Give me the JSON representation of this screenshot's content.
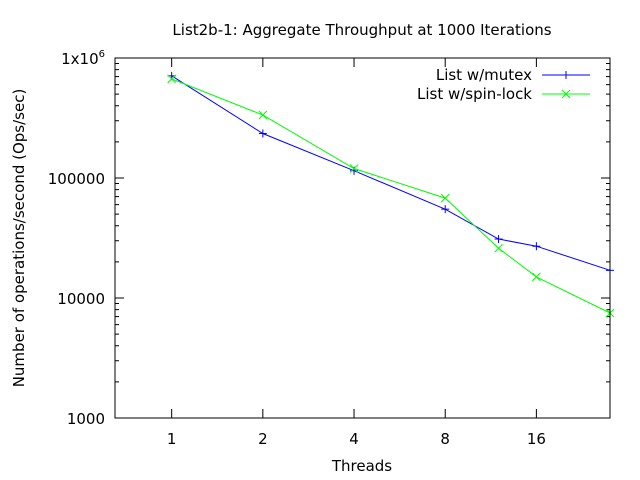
{
  "chart_data": {
    "type": "line",
    "title": "List2b-1: Aggregate Throughput at 1000 Iterations",
    "xlabel": "Threads",
    "ylabel": "Number of operations/second (Ops/sec)",
    "x_scale": "log2",
    "y_scale": "log10",
    "xlim": [
      0.65,
      28
    ],
    "ylim": [
      1000,
      1000000
    ],
    "x_ticks": [
      {
        "value": 1,
        "label": "1"
      },
      {
        "value": 2,
        "label": "2"
      },
      {
        "value": 4,
        "label": "4"
      },
      {
        "value": 8,
        "label": "8"
      },
      {
        "value": 16,
        "label": "16"
      }
    ],
    "y_ticks": [
      {
        "value": 1000,
        "label": "1000"
      },
      {
        "value": 10000,
        "label": "10000"
      },
      {
        "value": 100000,
        "label": "100000"
      },
      {
        "value": 1000000,
        "label_base": "1x10",
        "label_exp": "6"
      }
    ],
    "legend_position": "top-right",
    "series": [
      {
        "name": "List w/mutex",
        "color": "#0000ff",
        "marker": "plus",
        "x": [
          1,
          2,
          4,
          8,
          12,
          16,
          28
        ],
        "y": [
          710000,
          235000,
          115000,
          55000,
          31000,
          27000,
          17000
        ]
      },
      {
        "name": "List w/spin-lock",
        "color": "#00ff00",
        "marker": "cross",
        "x": [
          1,
          2,
          4,
          8,
          12,
          16,
          28
        ],
        "y": [
          670000,
          335000,
          120000,
          68000,
          26000,
          15000,
          7500
        ]
      }
    ]
  }
}
